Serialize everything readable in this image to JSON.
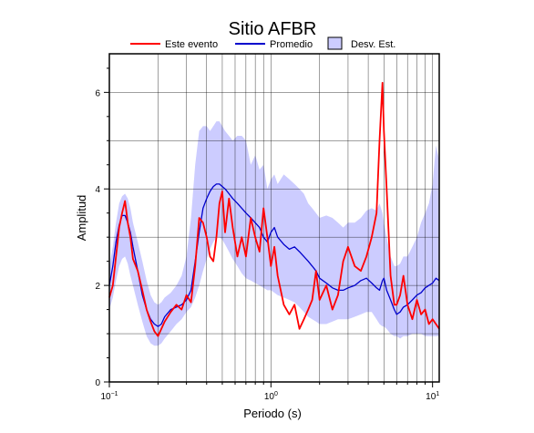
{
  "chart_data": {
    "type": "line",
    "title": "Sitio AFBR",
    "xlabel": "Periodo (s)",
    "ylabel": "Amplitud",
    "xscale": "log",
    "xlim": [
      0.1,
      11
    ],
    "ylim": [
      0,
      6.8
    ],
    "grid": true,
    "legend_position": "top",
    "x_ticks": [
      {
        "value": 0.1,
        "base": "10",
        "exp": "−1"
      },
      {
        "value": 1,
        "base": "10",
        "exp": "0"
      },
      {
        "value": 10,
        "base": "10",
        "exp": "1"
      }
    ],
    "y_ticks": [
      0,
      2,
      4,
      6
    ],
    "x": [
      0.1,
      0.105,
      0.11,
      0.115,
      0.12,
      0.125,
      0.13,
      0.135,
      0.14,
      0.15,
      0.16,
      0.17,
      0.18,
      0.19,
      0.2,
      0.21,
      0.22,
      0.24,
      0.26,
      0.28,
      0.3,
      0.32,
      0.34,
      0.36,
      0.38,
      0.4,
      0.42,
      0.44,
      0.46,
      0.48,
      0.5,
      0.52,
      0.55,
      0.58,
      0.62,
      0.66,
      0.7,
      0.75,
      0.8,
      0.85,
      0.9,
      0.95,
      1.0,
      1.05,
      1.1,
      1.2,
      1.3,
      1.4,
      1.5,
      1.6,
      1.7,
      1.8,
      1.9,
      2.0,
      2.2,
      2.4,
      2.6,
      2.8,
      3.0,
      3.3,
      3.6,
      3.9,
      4.2,
      4.5,
      4.7,
      4.9,
      5.0,
      5.2,
      5.5,
      5.8,
      6.0,
      6.3,
      6.6,
      7.0,
      7.5,
      8.0,
      8.5,
      9.0,
      9.5,
      10.0,
      10.5,
      11.0
    ],
    "series": [
      {
        "name": "Este evento",
        "color": "#ff0000",
        "values": [
          1.75,
          2.0,
          2.6,
          3.2,
          3.5,
          3.75,
          3.3,
          3.0,
          2.55,
          2.3,
          1.9,
          1.5,
          1.25,
          1.05,
          0.95,
          1.1,
          1.25,
          1.45,
          1.6,
          1.5,
          1.8,
          1.65,
          2.4,
          3.4,
          3.3,
          3.0,
          2.6,
          2.5,
          3.0,
          3.7,
          3.95,
          3.1,
          3.8,
          3.2,
          2.6,
          3.0,
          2.6,
          3.4,
          3.0,
          2.7,
          3.6,
          3.0,
          2.4,
          2.8,
          2.2,
          1.6,
          1.4,
          1.6,
          1.1,
          1.3,
          1.5,
          1.7,
          2.3,
          1.7,
          2.0,
          1.5,
          1.8,
          2.5,
          2.8,
          2.4,
          2.3,
          2.6,
          3.0,
          3.5,
          5.0,
          6.2,
          5.2,
          4.0,
          2.2,
          1.6,
          1.6,
          1.8,
          2.2,
          1.6,
          1.3,
          1.7,
          1.4,
          1.5,
          1.2,
          1.3,
          1.2,
          1.1
        ]
      },
      {
        "name": "Promedio",
        "color": "#0000cc",
        "values": [
          2.0,
          2.4,
          2.9,
          3.25,
          3.45,
          3.45,
          3.3,
          3.1,
          2.8,
          2.3,
          1.8,
          1.5,
          1.3,
          1.2,
          1.15,
          1.2,
          1.35,
          1.5,
          1.55,
          1.6,
          1.7,
          1.9,
          2.5,
          3.1,
          3.6,
          3.8,
          3.95,
          4.05,
          4.1,
          4.1,
          4.05,
          4.0,
          3.9,
          3.8,
          3.7,
          3.6,
          3.5,
          3.4,
          3.3,
          3.2,
          3.0,
          2.9,
          3.1,
          3.2,
          3.0,
          2.85,
          2.75,
          2.8,
          2.7,
          2.6,
          2.5,
          2.4,
          2.3,
          2.15,
          2.05,
          1.95,
          1.9,
          1.9,
          1.95,
          2.0,
          2.1,
          2.15,
          2.05,
          1.95,
          1.9,
          2.1,
          2.15,
          1.9,
          1.7,
          1.5,
          1.4,
          1.45,
          1.55,
          1.6,
          1.7,
          1.8,
          1.85,
          1.95,
          2.0,
          2.05,
          2.15,
          2.1
        ]
      }
    ],
    "band": {
      "name": "Desv. Est.",
      "color": "#ccccff",
      "lower": [
        1.5,
        1.75,
        2.1,
        2.4,
        2.55,
        2.6,
        2.45,
        2.2,
        2.0,
        1.6,
        1.25,
        0.95,
        0.8,
        0.75,
        0.75,
        0.8,
        0.9,
        1.05,
        1.2,
        1.3,
        1.45,
        1.55,
        1.75,
        2.0,
        2.3,
        2.55,
        2.75,
        2.9,
        3.0,
        3.0,
        2.95,
        2.85,
        2.7,
        2.55,
        2.4,
        2.25,
        2.15,
        2.1,
        2.05,
        2.0,
        1.95,
        1.9,
        1.9,
        1.85,
        1.8,
        1.75,
        1.7,
        1.65,
        1.55,
        1.45,
        1.35,
        1.3,
        1.25,
        1.2,
        1.2,
        1.25,
        1.3,
        1.3,
        1.3,
        1.35,
        1.4,
        1.45,
        1.45,
        1.3,
        1.2,
        1.15,
        1.15,
        1.1,
        1.0,
        0.95,
        0.95,
        0.9,
        0.95,
        0.95,
        1.0,
        1.0,
        1.0,
        0.95,
        0.95,
        0.95,
        0.95,
        0.95
      ],
      "upper": [
        2.4,
        2.8,
        3.3,
        3.7,
        3.85,
        3.9,
        3.8,
        3.6,
        3.3,
        2.9,
        2.5,
        2.1,
        1.8,
        1.65,
        1.6,
        1.65,
        1.75,
        1.85,
        2.0,
        2.2,
        2.6,
        3.4,
        4.5,
        5.2,
        5.3,
        5.3,
        5.2,
        5.3,
        5.4,
        5.4,
        5.3,
        5.2,
        5.1,
        5.0,
        5.1,
        5.1,
        5.0,
        4.5,
        4.7,
        4.4,
        4.5,
        4.0,
        4.2,
        4.3,
        4.1,
        4.3,
        4.2,
        4.1,
        4.0,
        3.9,
        3.7,
        3.6,
        3.5,
        3.4,
        3.45,
        3.4,
        3.3,
        3.2,
        3.3,
        3.3,
        3.4,
        3.55,
        3.6,
        3.55,
        3.7,
        3.5,
        3.3,
        3.0,
        2.6,
        2.4,
        2.4,
        2.45,
        2.6,
        2.6,
        2.8,
        3.0,
        3.3,
        3.5,
        3.7,
        4.1,
        4.9,
        4.6
      ]
    }
  }
}
